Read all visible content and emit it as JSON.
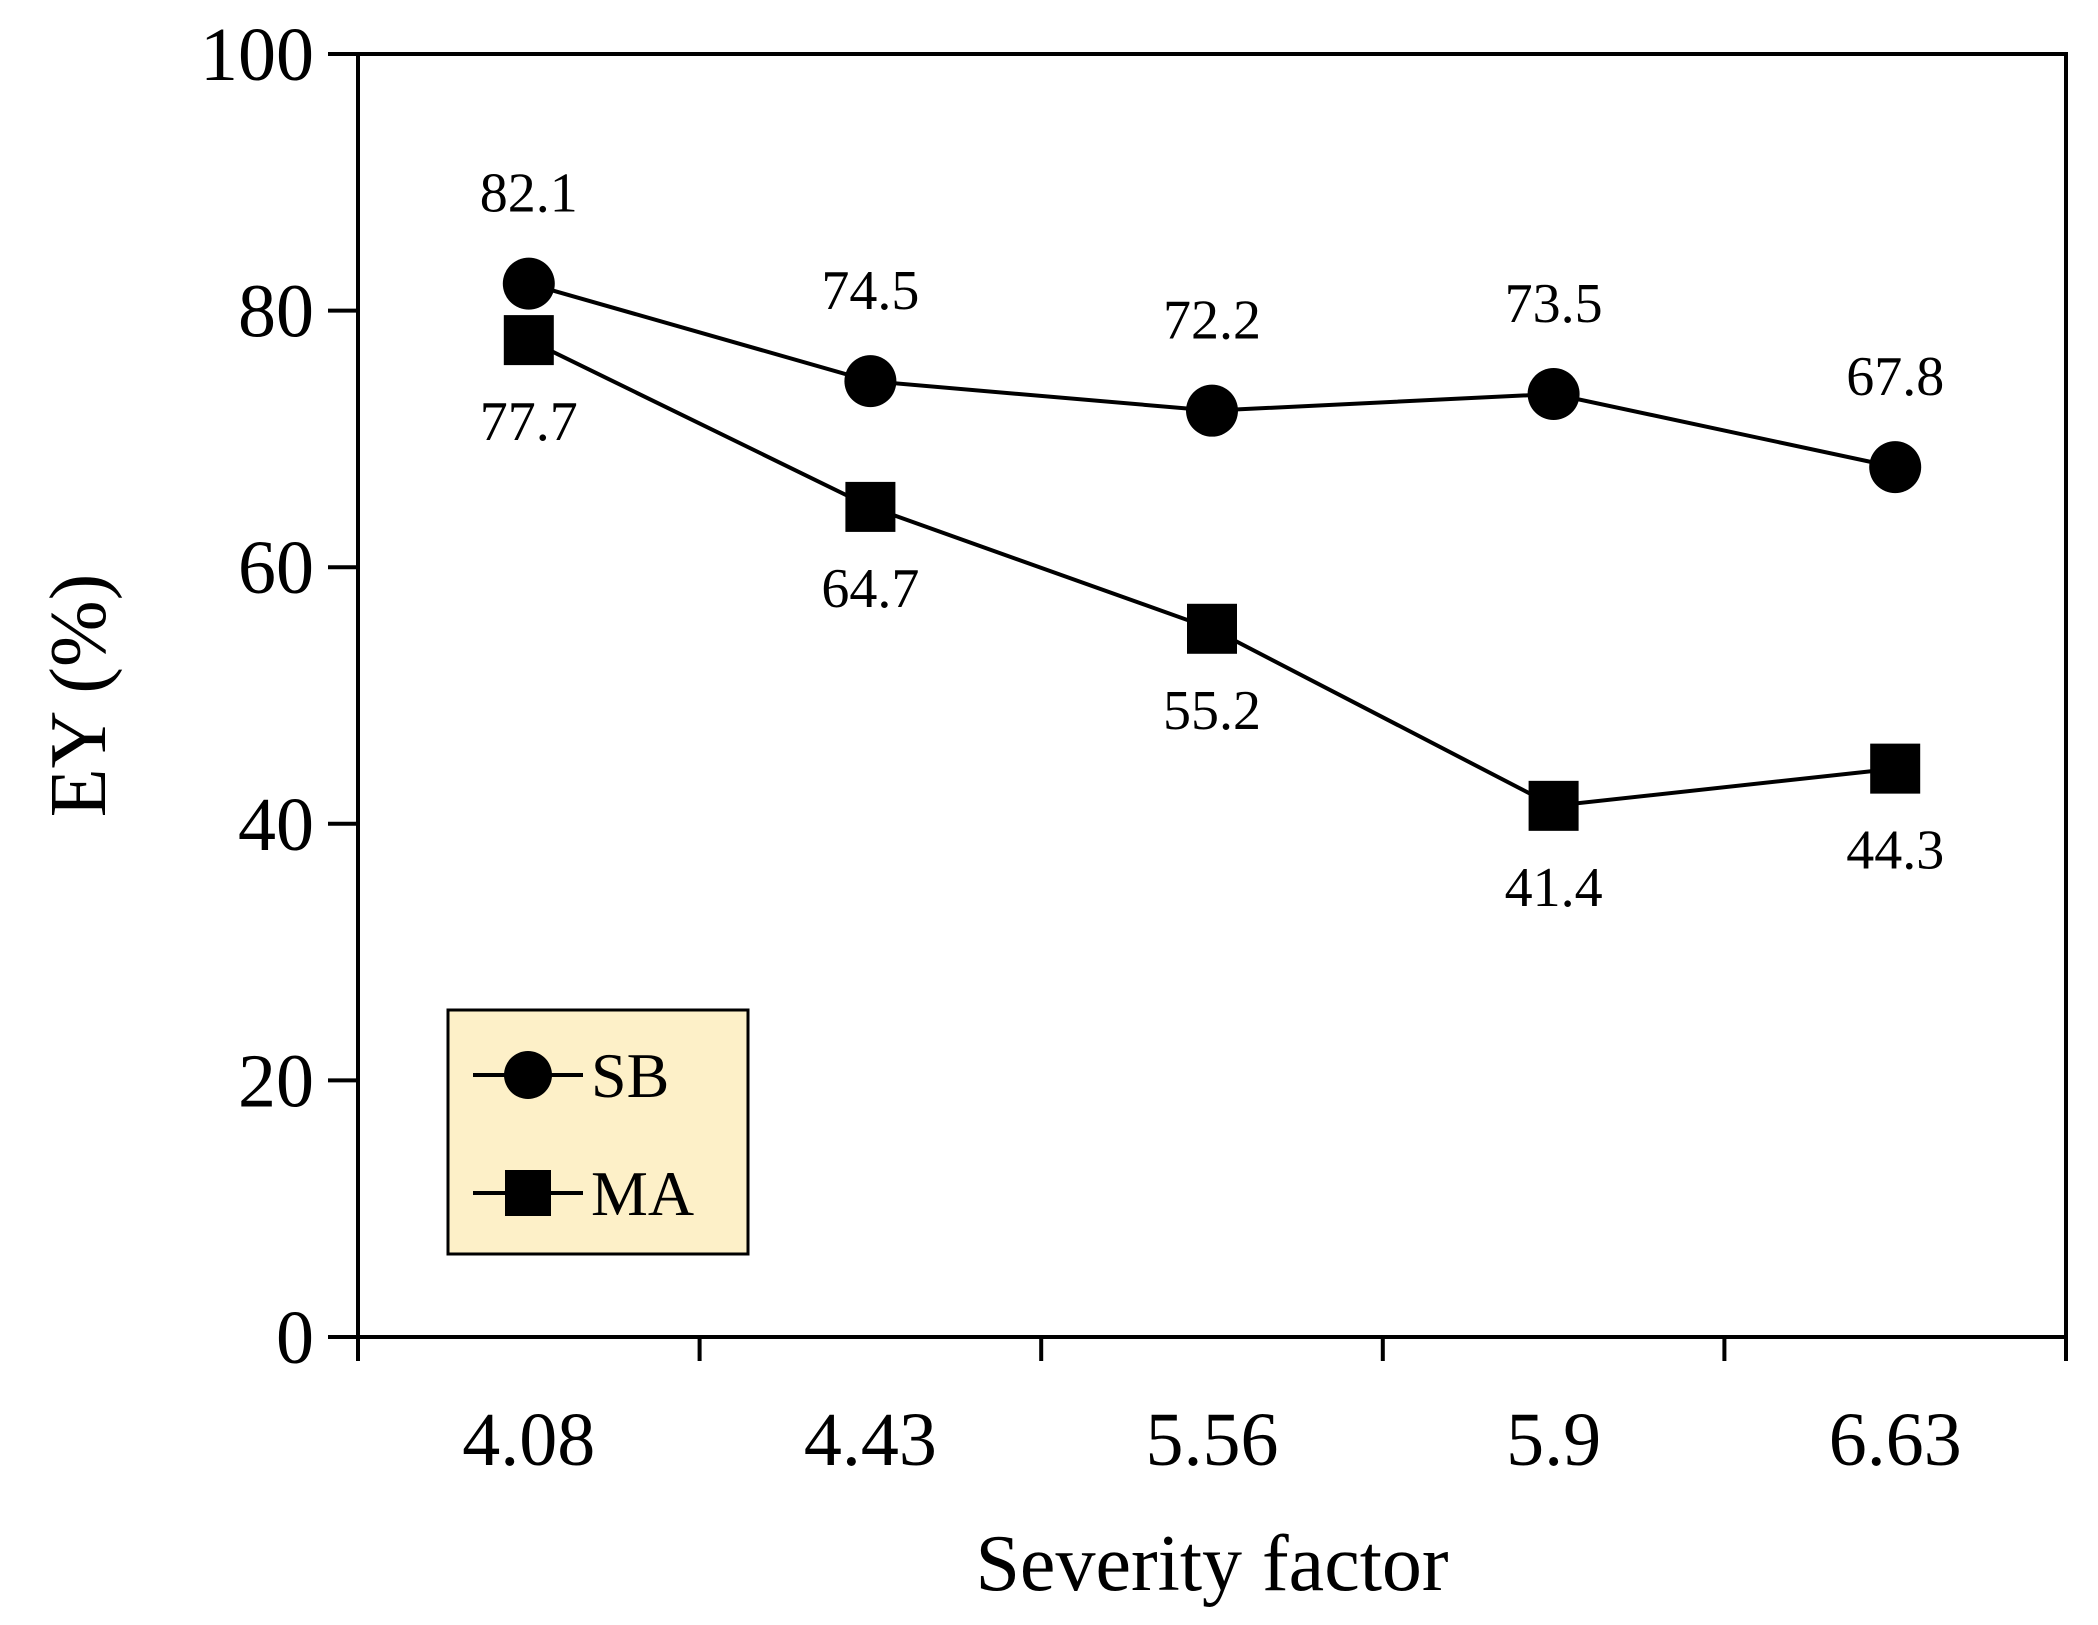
{
  "chart_data": {
    "type": "line",
    "title": "",
    "xlabel": "Severity factor",
    "ylabel": "EY (%)",
    "categories": [
      "4.08",
      "4.43",
      "5.56",
      "5.9",
      "6.63"
    ],
    "ylim": [
      0,
      100
    ],
    "yticks": [
      "0",
      "20",
      "40",
      "60",
      "80",
      "100"
    ],
    "grid": false,
    "legend_position": "bottom-left",
    "series": [
      {
        "name": "SB",
        "marker": "circle",
        "values": [
          82.1,
          74.5,
          72.2,
          73.5,
          67.8
        ],
        "labels": [
          "82.1",
          "74.5",
          "72.2",
          "73.5",
          "67.8"
        ],
        "label_position": "above"
      },
      {
        "name": "MA",
        "marker": "square",
        "values": [
          77.7,
          64.7,
          55.2,
          41.4,
          44.3
        ],
        "labels": [
          "77.7",
          "64.7",
          "55.2",
          "41.4",
          "44.3"
        ],
        "label_position": "below"
      }
    ],
    "colors": {
      "line": "#000000",
      "marker": "#000000",
      "legend_bg": "#fdf0c8",
      "axis": "#000000"
    }
  }
}
